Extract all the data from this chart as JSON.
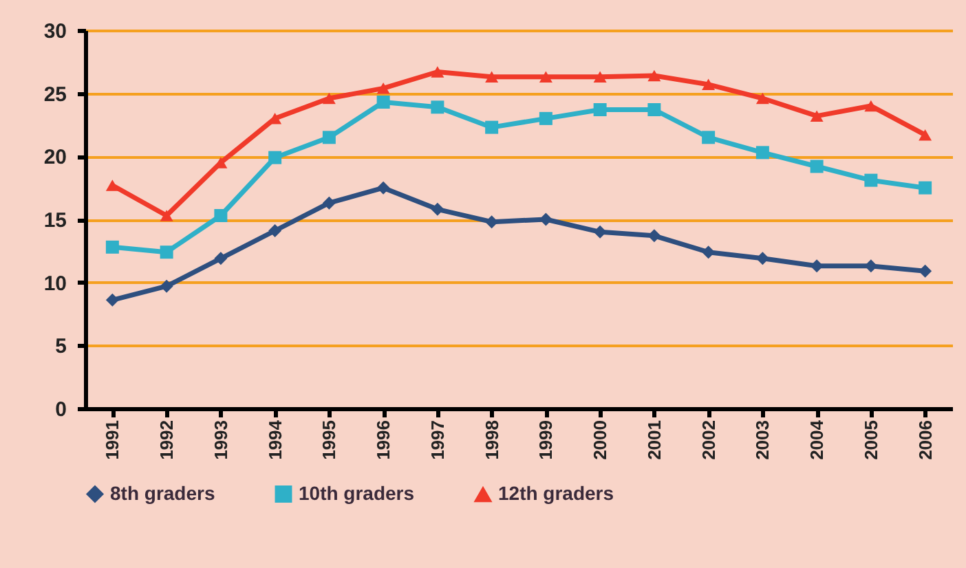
{
  "chart_data": {
    "type": "line",
    "categories": [
      "1991",
      "1992",
      "1993",
      "1994",
      "1995",
      "1996",
      "1997",
      "1998",
      "1999",
      "2000",
      "2001",
      "2002",
      "2003",
      "2004",
      "2005",
      "2006"
    ],
    "series": [
      {
        "name": "8th graders",
        "color": "#2e4f7f",
        "marker": "diamond",
        "values": [
          8.6,
          9.7,
          11.9,
          14.1,
          16.3,
          17.5,
          15.8,
          14.8,
          15.0,
          14.0,
          13.7,
          12.4,
          11.9,
          11.3,
          11.3,
          10.9
        ]
      },
      {
        "name": "10th graders",
        "color": "#2fb0c8",
        "marker": "square",
        "values": [
          12.8,
          12.4,
          15.3,
          19.9,
          21.5,
          24.3,
          23.9,
          22.3,
          23.0,
          23.7,
          23.7,
          21.5,
          20.3,
          19.2,
          18.1,
          17.5
        ]
      },
      {
        "name": "12th graders",
        "color": "#f03a2a",
        "marker": "triangle",
        "values": [
          17.7,
          15.3,
          19.5,
          23.0,
          24.6,
          25.4,
          26.7,
          26.3,
          26.3,
          26.3,
          26.4,
          25.7,
          24.6,
          23.2,
          24.0,
          21.7
        ]
      }
    ],
    "ylim": [
      0,
      30
    ],
    "yticks": [
      0,
      5,
      10,
      15,
      20,
      25,
      30
    ],
    "grid": "y",
    "legend": "bottom"
  }
}
